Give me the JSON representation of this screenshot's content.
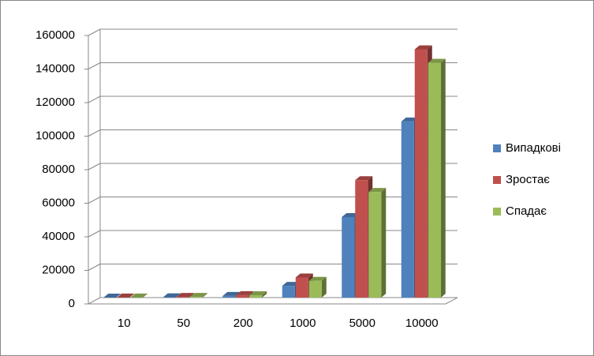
{
  "chart_data": {
    "type": "bar3d",
    "categories": [
      "10",
      "50",
      "200",
      "1000",
      "5000",
      "10000"
    ],
    "series": [
      {
        "name": "Випадкові",
        "color": "#4f81bd",
        "values": [
          20,
          200,
          1000,
          7000,
          48000,
          105000
        ]
      },
      {
        "name": "Зростає",
        "color": "#c0504d",
        "values": [
          50,
          400,
          1500,
          12000,
          70000,
          148000
        ]
      },
      {
        "name": "Спадає",
        "color": "#9bbb59",
        "values": [
          50,
          400,
          1400,
          10000,
          63000,
          140000
        ]
      }
    ],
    "ylim": [
      0,
      160000
    ],
    "yticks": [
      0,
      20000,
      40000,
      60000,
      80000,
      100000,
      120000,
      140000,
      160000
    ],
    "grid": true,
    "legend": "right"
  }
}
